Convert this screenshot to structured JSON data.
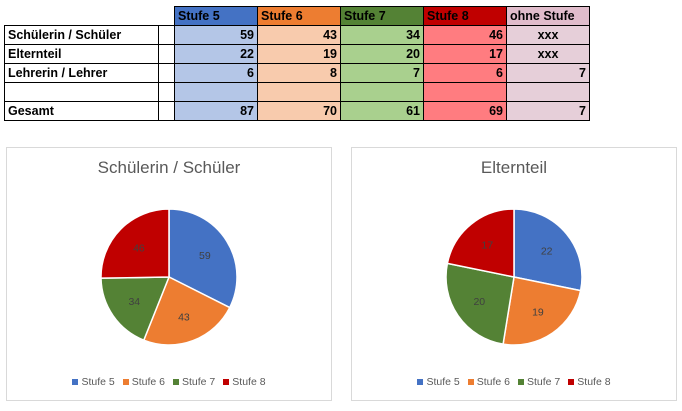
{
  "table": {
    "headers": [
      "Stufe 5",
      "Stufe 6",
      "Stufe 7",
      "Stufe 8",
      "ohne Stufe"
    ],
    "rows": [
      {
        "label": "Schülerin / Schüler",
        "values": [
          "59",
          "43",
          "34",
          "46",
          "xxx"
        ]
      },
      {
        "label": "Elternteil",
        "values": [
          "22",
          "19",
          "20",
          "17",
          "xxx"
        ]
      },
      {
        "label": "Lehrerin / Lehrer",
        "values": [
          "6",
          "8",
          "7",
          "6",
          "7"
        ]
      },
      {
        "label": "",
        "values": [
          "",
          "",
          "",
          "",
          ""
        ]
      },
      {
        "label": "Gesamt",
        "values": [
          "87",
          "70",
          "61",
          "69",
          "7"
        ]
      }
    ]
  },
  "colors": {
    "stufe5": "#4472c4",
    "stufe6": "#ed7d31",
    "stufe7": "#548235",
    "stufe8": "#c00000"
  },
  "chart_data": [
    {
      "type": "pie",
      "title": "Schülerin / Schüler",
      "categories": [
        "Stufe 5",
        "Stufe 6",
        "Stufe 7",
        "Stufe 8"
      ],
      "values": [
        59,
        43,
        34,
        46
      ],
      "legend": "bottom"
    },
    {
      "type": "pie",
      "title": "Elternteil",
      "categories": [
        "Stufe 5",
        "Stufe 6",
        "Stufe 7",
        "Stufe 8"
      ],
      "values": [
        22,
        19,
        20,
        17
      ],
      "legend": "bottom"
    }
  ]
}
